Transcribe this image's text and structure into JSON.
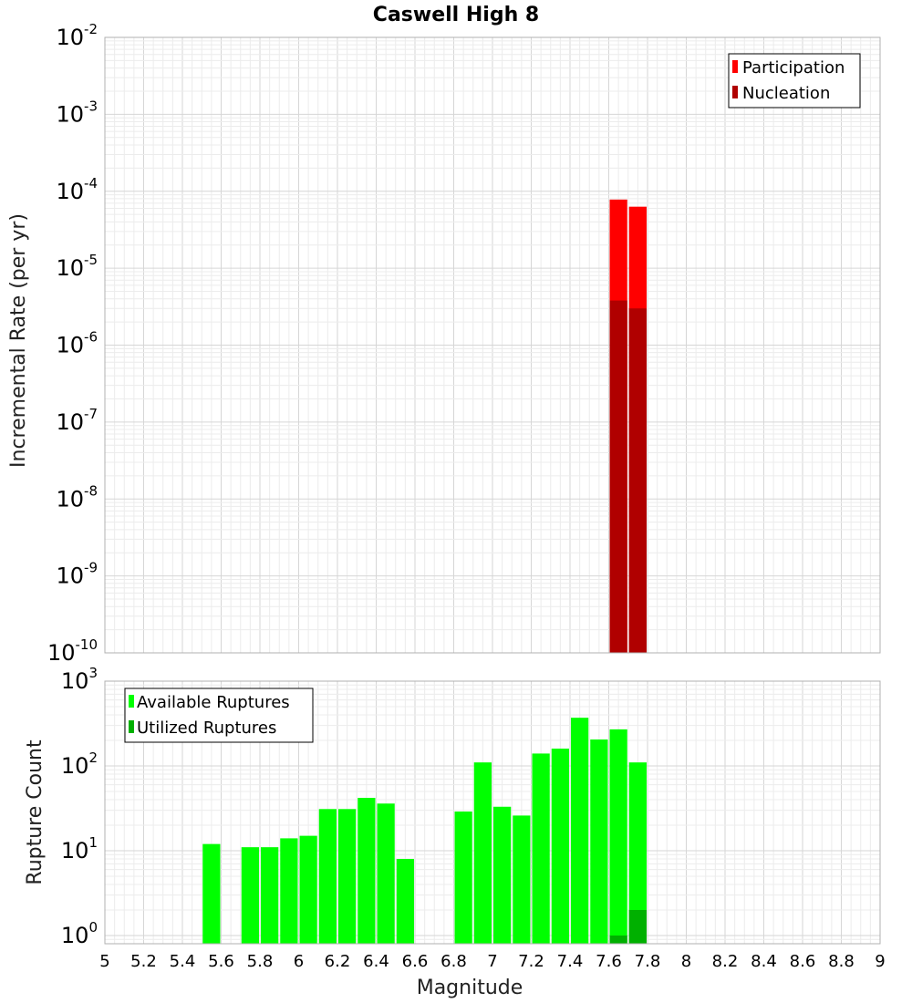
{
  "chart_data": [
    {
      "type": "bar",
      "scale": "log",
      "title": "Caswell High 8",
      "xlabel": "Magnitude",
      "ylabel": "Incremental Rate (per yr)",
      "xlim": [
        5,
        9
      ],
      "ylim": [
        1e-10,
        0.01
      ],
      "y_ticks": [
        {
          "base": "10",
          "exp": "-10",
          "value": 1e-10
        },
        {
          "base": "10",
          "exp": "-9",
          "value": 1e-09
        },
        {
          "base": "10",
          "exp": "-8",
          "value": 1e-08
        },
        {
          "base": "10",
          "exp": "-7",
          "value": 1e-07
        },
        {
          "base": "10",
          "exp": "-6",
          "value": 1e-06
        },
        {
          "base": "10",
          "exp": "-5",
          "value": 1e-05
        },
        {
          "base": "10",
          "exp": "-4",
          "value": 0.0001
        },
        {
          "base": "10",
          "exp": "-3",
          "value": 0.001
        },
        {
          "base": "10",
          "exp": "-2",
          "value": 0.01
        }
      ],
      "legend": {
        "position": "top-right",
        "entries": [
          "Participation",
          "Nucleation"
        ]
      },
      "bar_width": 0.1,
      "series": [
        {
          "name": "Participation",
          "color": "#ff0000",
          "x": [
            7.65,
            7.75
          ],
          "values": [
            7.8e-05,
            6.3e-05
          ]
        },
        {
          "name": "Nucleation",
          "color": "#b00000",
          "x": [
            7.65,
            7.75
          ],
          "values": [
            3.8e-06,
            3e-06
          ]
        }
      ]
    },
    {
      "type": "bar",
      "scale": "log",
      "xlabel": "Magnitude",
      "ylabel": "Rupture Count",
      "xlim": [
        5,
        9
      ],
      "ylim": [
        0.8,
        1000
      ],
      "x_ticks": [
        "5",
        "5.2",
        "5.4",
        "5.6",
        "5.8",
        "6",
        "6.2",
        "6.4",
        "6.6",
        "6.8",
        "7",
        "7.2",
        "7.4",
        "7.6",
        "7.8",
        "8",
        "8.2",
        "8.4",
        "8.6",
        "8.8",
        "9"
      ],
      "y_ticks": [
        {
          "base": "10",
          "exp": "0",
          "value": 1
        },
        {
          "base": "10",
          "exp": "1",
          "value": 10
        },
        {
          "base": "10",
          "exp": "2",
          "value": 100
        },
        {
          "base": "10",
          "exp": "3",
          "value": 1000
        }
      ],
      "legend": {
        "position": "top-left",
        "entries": [
          "Available Ruptures",
          "Utilized Ruptures"
        ]
      },
      "bar_width": 0.1,
      "series": [
        {
          "name": "Available Ruptures",
          "color": "#00ff00",
          "x": [
            5.55,
            5.75,
            5.85,
            5.95,
            6.05,
            6.15,
            6.25,
            6.35,
            6.45,
            6.55,
            6.85,
            6.95,
            7.05,
            7.15,
            7.25,
            7.35,
            7.45,
            7.55,
            7.65,
            7.75
          ],
          "values": [
            12,
            11,
            11,
            14,
            15,
            31,
            31,
            42,
            36,
            8,
            29,
            110,
            33,
            26,
            140,
            160,
            370,
            205,
            270,
            110
          ]
        },
        {
          "name": "Utilized Ruptures",
          "color": "#00b000",
          "x": [
            7.65,
            7.75
          ],
          "values": [
            1,
            2
          ]
        }
      ]
    }
  ]
}
